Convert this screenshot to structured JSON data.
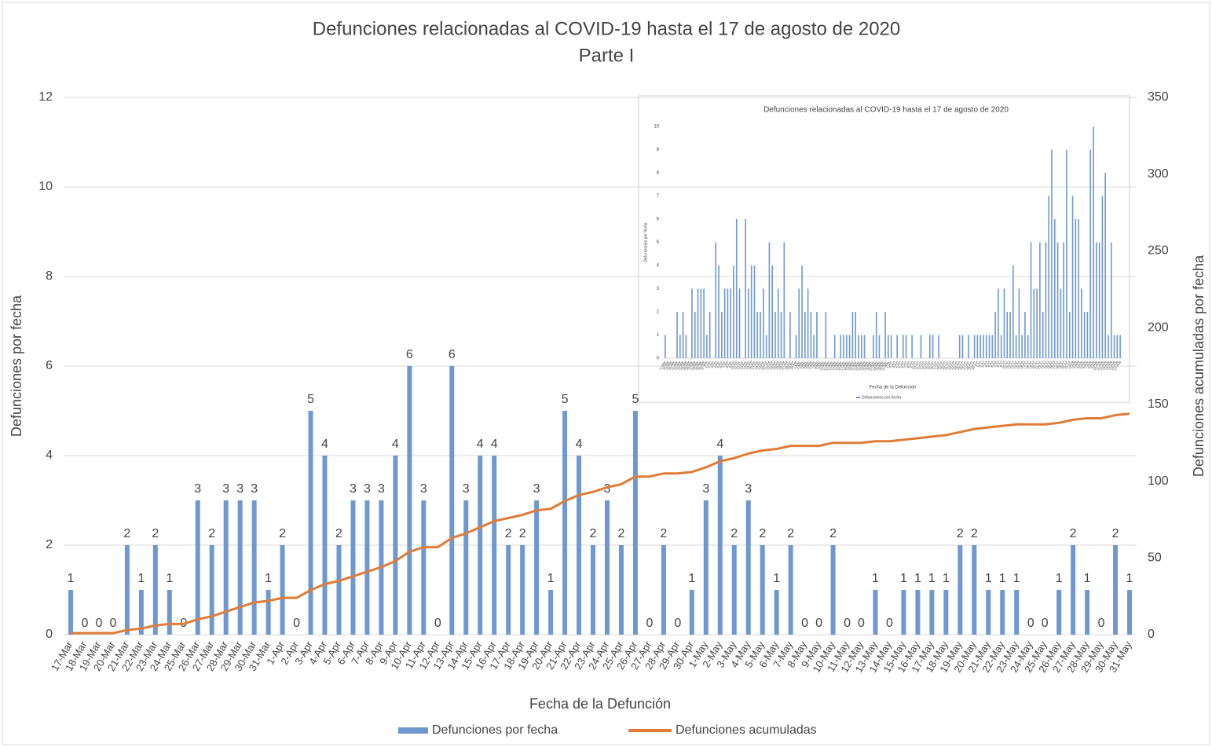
{
  "chart_data": [
    {
      "type": "bar",
      "title": "Defunciones relacionadas al COVID-19 hasta el 17 de agosto de 2020",
      "subtitle": "Parte I",
      "x_label": "Fecha de la Defunción",
      "y_label": "Defunciones por fecha",
      "y2_label": "Defunciones acumuladas por fecha",
      "categories": [
        "17-Mar",
        "18-Mar",
        "19-Mar",
        "20-Mar",
        "21-Mar",
        "22-Mar",
        "23-Mar",
        "24-Mar",
        "25-Mar",
        "26-Mar",
        "27-Mar",
        "28-Mar",
        "29-Mar",
        "30-Mar",
        "31-Mar",
        "1-Apr",
        "2-Apr",
        "3-Apr",
        "4-Apr",
        "5-Apr",
        "6-Apr",
        "7-Apr",
        "8-Apr",
        "9-Apr",
        "10-Apr",
        "11-Apr",
        "12-Apr",
        "13-Apr",
        "14-Apr",
        "15-Apr",
        "16-Apr",
        "17-Apr",
        "18-Apr",
        "19-Apr",
        "20-Apr",
        "21-Apr",
        "22-Apr",
        "23-Apr",
        "24-Apr",
        "25-Apr",
        "26-Apr",
        "27-Apr",
        "28-Apr",
        "29-Apr",
        "30-Apr",
        "1-May",
        "2-May",
        "3-May",
        "4-May",
        "5-May",
        "6-May",
        "7-May",
        "8-May",
        "9-May",
        "10-May",
        "11-May",
        "12-May",
        "13-May",
        "14-May",
        "15-May",
        "16-May",
        "17-May",
        "18-May",
        "19-May",
        "20-May",
        "21-May",
        "22-May",
        "23-May",
        "24-May",
        "25-May",
        "26-May",
        "27-May",
        "28-May",
        "29-May",
        "30-May",
        "31-May"
      ],
      "series": [
        {
          "name": "Defunciones por fecha",
          "color": "#6f98d2",
          "values": [
            1,
            0,
            0,
            0,
            2,
            1,
            2,
            1,
            0,
            3,
            2,
            3,
            3,
            3,
            1,
            2,
            0,
            5,
            4,
            2,
            3,
            3,
            3,
            4,
            6,
            3,
            0,
            6,
            3,
            4,
            4,
            2,
            2,
            3,
            1,
            5,
            4,
            2,
            3,
            2,
            5,
            0,
            2,
            0,
            1,
            3,
            4,
            2,
            3,
            2,
            1,
            2,
            0,
            0,
            2,
            0,
            0,
            1,
            0,
            1,
            1,
            1,
            1,
            2,
            2,
            1,
            1,
            1,
            0,
            0,
            1,
            2,
            1,
            0,
            2,
            1
          ]
        },
        {
          "name": "Defunciones acumuladas",
          "color": "#df7c36",
          "type": "line",
          "axis": "y2",
          "values": [
            1,
            1,
            1,
            1,
            3,
            4,
            6,
            7,
            7,
            10,
            12,
            15,
            18,
            21,
            22,
            24,
            24,
            29,
            33,
            35,
            38,
            41,
            44,
            48,
            54,
            57,
            57,
            63,
            66,
            70,
            74,
            76,
            78,
            81,
            82,
            87,
            91,
            93,
            96,
            98,
            103,
            103,
            105,
            105,
            106,
            109,
            113,
            115,
            118,
            120,
            121,
            123,
            123,
            123,
            125,
            125,
            125,
            126,
            126,
            127,
            128,
            129,
            130,
            132,
            134,
            135,
            136,
            137,
            137,
            137,
            138,
            140,
            141,
            141,
            143,
            144
          ]
        }
      ],
      "ylim": [
        0,
        12
      ],
      "yticks": [
        0,
        2,
        4,
        6,
        8,
        10,
        12
      ],
      "y2lim": [
        0,
        350
      ],
      "y2ticks": [
        0,
        50,
        100,
        150,
        200,
        250,
        300,
        350
      ],
      "grid": true,
      "data_labels": true,
      "legend": "bottom"
    },
    {
      "type": "bar",
      "title": "Defunciones relacionadas al COVID-19 hasta el 17 de agosto de 2020",
      "x_label": "Fecha de la Defunción",
      "y_label": "Defunciones por fecha",
      "categories": [
        "17-Mar",
        "18-Mar",
        "19-Mar",
        "20-Mar",
        "21-Mar",
        "22-Mar",
        "23-Mar",
        "24-Mar",
        "25-Mar",
        "26-Mar",
        "27-Mar",
        "28-Mar",
        "29-Mar",
        "30-Mar",
        "31-Mar",
        "1-Apr",
        "2-Apr",
        "3-Apr",
        "4-Apr",
        "5-Apr",
        "6-Apr",
        "7-Apr",
        "8-Apr",
        "9-Apr",
        "10-Apr",
        "11-Apr",
        "12-Apr",
        "13-Apr",
        "14-Apr",
        "15-Apr",
        "16-Apr",
        "17-Apr",
        "18-Apr",
        "19-Apr",
        "20-Apr",
        "21-Apr",
        "22-Apr",
        "23-Apr",
        "24-Apr",
        "25-Apr",
        "26-Apr",
        "27-Apr",
        "28-Apr",
        "29-Apr",
        "30-Apr",
        "1-May",
        "2-May",
        "3-May",
        "4-May",
        "5-May",
        "6-May",
        "7-May",
        "8-May",
        "9-May",
        "10-May",
        "11-May",
        "12-May",
        "13-May",
        "14-May",
        "15-May",
        "16-May",
        "17-May",
        "18-May",
        "19-May",
        "20-May",
        "21-May",
        "22-May",
        "23-May",
        "24-May",
        "25-May",
        "26-May",
        "27-May",
        "28-May",
        "29-May",
        "30-May",
        "31-May",
        "1-Jun",
        "2-Jun",
        "3-Jun",
        "4-Jun",
        "5-Jun",
        "6-Jun",
        "7-Jun",
        "8-Jun",
        "9-Jun",
        "10-Jun",
        "11-Jun",
        "12-Jun",
        "13-Jun",
        "14-Jun",
        "15-Jun",
        "16-Jun",
        "17-Jun",
        "18-Jun",
        "19-Jun",
        "20-Jun",
        "21-Jun",
        "22-Jun",
        "23-Jun",
        "24-Jun",
        "25-Jun",
        "26-Jun",
        "27-Jun",
        "28-Jun",
        "29-Jun",
        "30-Jun",
        "1-Jul",
        "2-Jul",
        "3-Jul",
        "4-Jul",
        "5-Jul",
        "6-Jul",
        "7-Jul",
        "8-Jul",
        "9-Jul",
        "10-Jul",
        "11-Jul",
        "12-Jul",
        "13-Jul",
        "14-Jul",
        "15-Jul",
        "16-Jul",
        "17-Jul",
        "18-Jul",
        "19-Jul",
        "20-Jul",
        "21-Jul",
        "22-Jul",
        "23-Jul",
        "24-Jul",
        "25-Jul",
        "26-Jul",
        "27-Jul",
        "28-Jul",
        "29-Jul",
        "30-Jul",
        "31-Jul",
        "1-Aug",
        "2-Aug",
        "3-Aug",
        "4-Aug",
        "5-Aug",
        "6-Aug",
        "7-Aug",
        "8-Aug",
        "9-Aug",
        "10-Aug",
        "11-Aug",
        "12-Aug",
        "13-Aug",
        "14-Aug",
        "15-Aug",
        "16-Aug",
        "17-Aug"
      ],
      "series": [
        {
          "name": "Defunciones por fecha",
          "color": "#6f98d2",
          "values": [
            1,
            0,
            0,
            0,
            2,
            1,
            2,
            1,
            0,
            3,
            2,
            3,
            3,
            3,
            1,
            2,
            0,
            5,
            4,
            2,
            3,
            3,
            3,
            4,
            6,
            3,
            0,
            6,
            3,
            4,
            4,
            2,
            2,
            3,
            1,
            5,
            4,
            2,
            3,
            2,
            5,
            0,
            2,
            0,
            1,
            3,
            4,
            2,
            3,
            2,
            1,
            2,
            0,
            0,
            2,
            0,
            0,
            1,
            0,
            1,
            1,
            1,
            1,
            2,
            2,
            1,
            1,
            1,
            0,
            0,
            1,
            2,
            1,
            0,
            2,
            1,
            1,
            0,
            1,
            0,
            1,
            1,
            0,
            1,
            0,
            0,
            1,
            0,
            0,
            1,
            1,
            0,
            1,
            0,
            0,
            0,
            0,
            0,
            0,
            1,
            1,
            0,
            1,
            0,
            1,
            1,
            1,
            1,
            1,
            1,
            1,
            2,
            3,
            1,
            3,
            2,
            2,
            4,
            1,
            3,
            1,
            2,
            1,
            5,
            3,
            3,
            5,
            2,
            5,
            7,
            9,
            6,
            5,
            3,
            5,
            9,
            2,
            7,
            6,
            6,
            3,
            2,
            2,
            9,
            10,
            5,
            5,
            7,
            8,
            1,
            5,
            1,
            1,
            1
          ]
        }
      ],
      "ylim": [
        0,
        10
      ],
      "yticks": [
        0,
        1,
        2,
        3,
        4,
        5,
        6,
        7,
        8,
        9,
        10
      ],
      "grid": false,
      "data_labels": false,
      "legend": "bottom"
    }
  ]
}
